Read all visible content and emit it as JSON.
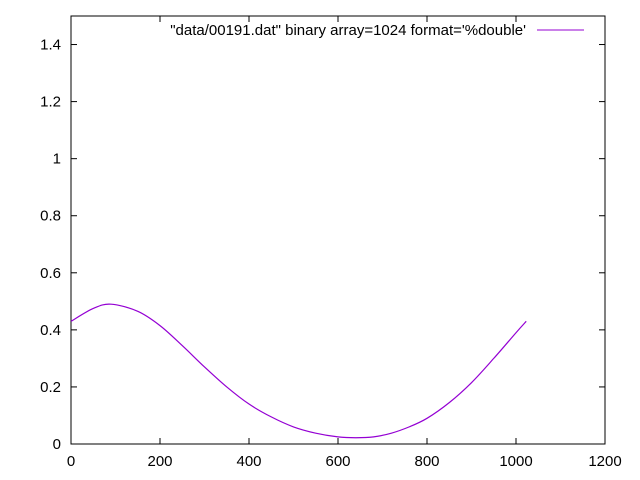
{
  "chart_data": {
    "type": "line",
    "title": "",
    "xlabel": "",
    "ylabel": "",
    "xlim": [
      0,
      1200
    ],
    "ylim": [
      0,
      1.5
    ],
    "x_ticks": [
      0,
      200,
      400,
      600,
      800,
      1000,
      1200
    ],
    "y_ticks": [
      0,
      0.2,
      0.4,
      0.6,
      0.8,
      1,
      1.2,
      1.4
    ],
    "x_tick_labels": [
      "0",
      "200",
      "400",
      "600",
      "800",
      "1000",
      "1200"
    ],
    "y_tick_labels": [
      "0",
      "0.2",
      "0.4",
      "0.6",
      "0.8",
      "1",
      "1.2",
      "1.4"
    ],
    "grid": false,
    "legend_position": "top-right",
    "series": [
      {
        "name": "\"data/00191.dat\" binary array=1024 format='%double'",
        "color": "#9400d3",
        "x": [
          0,
          50,
          90,
          150,
          200,
          250,
          300,
          350,
          400,
          450,
          500,
          550,
          600,
          640,
          680,
          720,
          760,
          800,
          850,
          900,
          950,
          1000,
          1023
        ],
        "y": [
          0.43,
          0.475,
          0.49,
          0.465,
          0.415,
          0.345,
          0.27,
          0.2,
          0.14,
          0.095,
          0.06,
          0.038,
          0.025,
          0.022,
          0.025,
          0.038,
          0.06,
          0.09,
          0.145,
          0.215,
          0.3,
          0.39,
          0.43
        ]
      }
    ]
  }
}
